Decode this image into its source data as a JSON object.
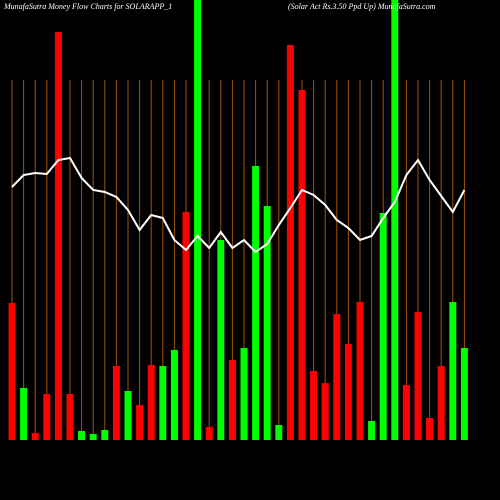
{
  "chart_data": {
    "type": "bar",
    "title": "MunafaSutra  Money Flow  Charts for SOLARAPP_1",
    "subtitle": "(Solar Act Rs.3.50  Ppd Up) MunafaSutra.com",
    "categories": [
      null,
      null,
      null,
      null,
      null,
      null,
      null,
      null,
      null,
      null,
      null,
      null,
      null,
      null,
      null,
      null,
      null,
      null,
      null,
      null,
      null,
      null,
      null,
      null,
      null,
      null,
      null,
      null,
      null,
      null,
      null,
      null,
      null,
      null,
      null,
      null,
      null,
      null,
      null,
      null
    ],
    "values": [
      137,
      52,
      7,
      46,
      408,
      46,
      9,
      6,
      10,
      74,
      49,
      35,
      75,
      74,
      90,
      228,
      440,
      13,
      200,
      80,
      92,
      274,
      234,
      15,
      395,
      350,
      69,
      57,
      126,
      96,
      138,
      19,
      227,
      440,
      55,
      128,
      22,
      74,
      138,
      92
    ],
    "colors": [
      "#ff0000",
      "#00ff00",
      "#ff0000",
      "#ff0000",
      "#ff0000",
      "#ff0000",
      "#00ff00",
      "#00ff00",
      "#00ff00",
      "#ff0000",
      "#00ff00",
      "#ff0000",
      "#ff0000",
      "#00ff00",
      "#00ff00",
      "#ff0000",
      "#00ff00",
      "#ff0000",
      "#00ff00",
      "#ff0000",
      "#00ff00",
      "#00ff00",
      "#00ff00",
      "#00ff00",
      "#ff0000",
      "#ff0000",
      "#ff0000",
      "#ff0000",
      "#ff0000",
      "#ff0000",
      "#ff0000",
      "#00ff00",
      "#00ff00",
      "#00ff00",
      "#ff0000",
      "#ff0000",
      "#ff0000",
      "#ff0000",
      "#00ff00",
      "#00ff00"
    ],
    "line": {
      "color": "#ffffff",
      "values": [
        253,
        265,
        267,
        266,
        280,
        282,
        262,
        250,
        248,
        243,
        230,
        210,
        225,
        222,
        200,
        190,
        204,
        192,
        208,
        192,
        200,
        188,
        196,
        215,
        232,
        250,
        245,
        235,
        220,
        212,
        200,
        204,
        222,
        238,
        265,
        280,
        260,
        244,
        228,
        250
      ]
    },
    "ylim": [
      0,
      440
    ],
    "grid": true,
    "grid_color": "#a0520a"
  }
}
